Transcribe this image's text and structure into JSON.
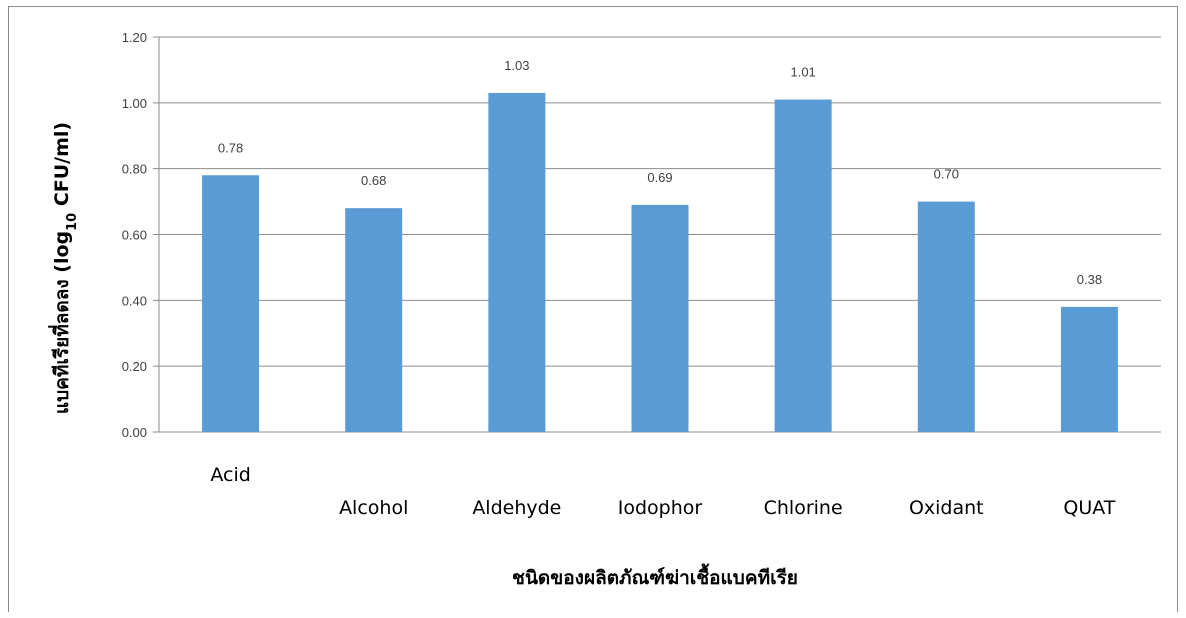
{
  "chart_data": {
    "type": "bar",
    "categories": [
      "Acid",
      "Alcohol",
      "Aldehyde",
      "Iodophor",
      "Chlorine",
      "Oxidant",
      "QUAT"
    ],
    "values": [
      0.78,
      0.68,
      1.03,
      0.69,
      1.01,
      0.7,
      0.38
    ],
    "data_labels": [
      "0.78",
      "0.68",
      "1.03",
      "0.69",
      "1.01",
      "0.70",
      "0.38"
    ],
    "xlabel": "ชนิดของผลิตภัณฑ์ฆ่าเชื้อแบคทีเรีย",
    "ylabel_prefix": "แบคทีเรียที่ลดลง (log",
    "ylabel_subscript": "10",
    "ylabel_suffix": " CFU/ml)",
    "ylim": [
      0,
      1.2
    ],
    "yticks": [
      "0.00",
      "0.20",
      "0.40",
      "0.60",
      "0.80",
      "1.00",
      "1.20"
    ],
    "grid": true,
    "legend": "none",
    "bar_color": "#5b9bd5",
    "grid_color": "#8c8c8c"
  }
}
